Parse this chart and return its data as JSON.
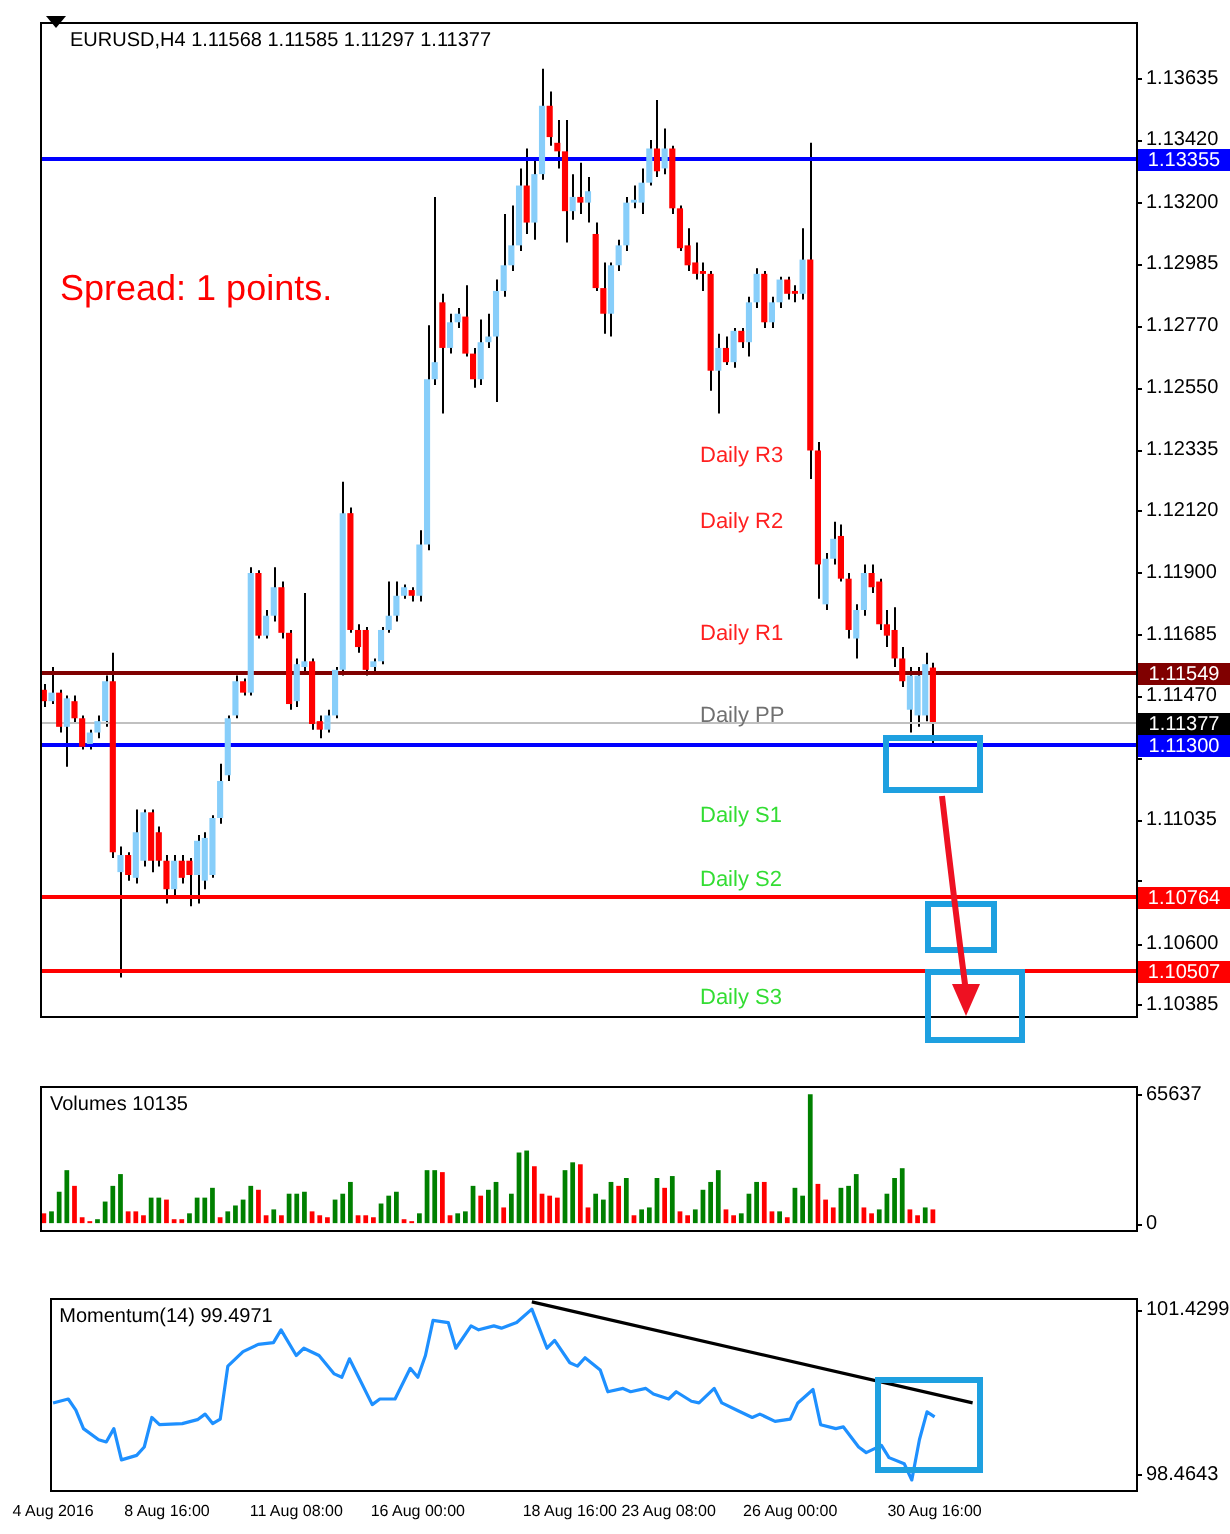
{
  "chart_data": [
    {
      "type": "candlestick",
      "title": "EURUSD,H4 1.11568 1.11585 1.11297 1.11377",
      "categories": [
        null,
        null,
        null,
        null,
        null,
        null,
        null,
        null,
        null,
        null,
        null,
        null,
        null,
        null,
        null,
        null,
        null,
        null,
        null,
        null,
        null,
        null,
        null,
        null,
        null,
        null,
        null,
        null,
        null,
        null,
        null,
        null,
        null,
        null,
        null,
        null,
        null,
        null,
        null,
        null,
        null,
        null,
        null,
        null,
        null,
        null,
        null,
        null,
        null,
        null,
        null,
        null,
        null,
        null,
        null,
        null,
        null,
        null,
        null,
        null,
        null,
        null,
        null,
        null,
        null,
        null,
        null,
        null,
        null,
        null,
        null,
        null,
        null,
        null,
        null,
        null,
        null,
        null,
        null,
        null,
        null,
        null,
        null,
        null,
        null,
        null,
        null,
        null,
        null,
        null,
        null,
        null,
        null,
        null,
        null,
        null,
        null,
        null,
        null,
        null,
        null,
        null,
        null,
        null,
        null,
        null,
        null,
        null,
        null,
        null,
        null,
        null,
        null,
        null,
        null,
        null,
        null,
        null,
        null,
        null,
        null,
        null,
        null,
        null,
        null,
        null,
        null,
        null,
        null,
        null,
        null,
        null,
        null,
        null,
        null,
        null,
        null,
        null,
        null,
        null,
        null,
        null,
        null
      ],
      "ohlc": [
        [
          1.1149,
          1.1151,
          1.1143,
          1.1145
        ],
        [
          1.1145,
          1.1157,
          1.1144,
          1.1148
        ],
        [
          1.1148,
          1.1149,
          1.1134,
          1.1136
        ],
        [
          1.1136,
          1.1147,
          1.1122,
          1.1146
        ],
        [
          1.1145,
          1.1147,
          1.1137,
          1.1139
        ],
        [
          1.1139,
          1.114,
          1.1128,
          1.1129
        ],
        [
          1.113,
          1.1135,
          1.1128,
          1.1134
        ],
        [
          1.1134,
          1.114,
          1.1132,
          1.1138
        ],
        [
          1.1138,
          1.1154,
          1.1136,
          1.1152
        ],
        [
          1.1152,
          1.1162,
          1.109,
          1.1092
        ],
        [
          1.1085,
          1.1094,
          1.1048,
          1.1091
        ],
        [
          1.1091,
          1.1092,
          1.1082,
          1.1084
        ],
        [
          1.1083,
          1.1107,
          1.1081,
          1.1099
        ],
        [
          1.1089,
          1.1107,
          1.1087,
          1.1106
        ],
        [
          1.1106,
          1.1107,
          1.1085,
          1.1089
        ],
        [
          1.1099,
          1.1101,
          1.1087,
          1.1089
        ],
        [
          1.1089,
          1.1091,
          1.1074,
          1.1079
        ],
        [
          1.1079,
          1.1091,
          1.1077,
          1.1089
        ],
        [
          1.1089,
          1.1091,
          1.1081,
          1.1083
        ],
        [
          1.1089,
          1.109,
          1.1073,
          1.1084
        ],
        [
          1.1084,
          1.1098,
          1.1074,
          1.1096
        ],
        [
          1.1082,
          1.1099,
          1.1079,
          1.1097
        ],
        [
          1.1084,
          1.1105,
          1.1083,
          1.1104
        ],
        [
          1.1104,
          1.1123,
          1.1102,
          1.1117
        ],
        [
          1.1119,
          1.114,
          1.1117,
          1.1139
        ],
        [
          1.114,
          1.1154,
          1.1139,
          1.1152
        ],
        [
          1.1152,
          1.1153,
          1.1147,
          1.1148
        ],
        [
          1.1148,
          1.1192,
          1.1147,
          1.119
        ],
        [
          1.119,
          1.1191,
          1.1167,
          1.1168
        ],
        [
          1.1168,
          1.1177,
          1.1167,
          1.1175
        ],
        [
          1.1175,
          1.1192,
          1.1173,
          1.1185
        ],
        [
          1.1185,
          1.1187,
          1.1167,
          1.1169
        ],
        [
          1.1169,
          1.117,
          1.1142,
          1.1144
        ],
        [
          1.1145,
          1.116,
          1.1143,
          1.1158
        ],
        [
          1.1157,
          1.1183,
          1.1155,
          1.1159
        ],
        [
          1.1159,
          1.116,
          1.1135,
          1.1137
        ],
        [
          1.1138,
          1.114,
          1.1132,
          1.1135
        ],
        [
          1.1135,
          1.1142,
          1.1134,
          1.114
        ],
        [
          1.114,
          1.1157,
          1.1139,
          1.1156
        ],
        [
          1.1156,
          1.1222,
          1.1154,
          1.1211
        ],
        [
          1.1211,
          1.1213,
          1.1169,
          1.117
        ],
        [
          1.117,
          1.1172,
          1.1162,
          1.1164
        ],
        [
          1.117,
          1.1171,
          1.1154,
          1.1156
        ],
        [
          1.1157,
          1.116,
          1.1155,
          1.1159
        ],
        [
          1.1159,
          1.1171,
          1.1158,
          1.117
        ],
        [
          1.117,
          1.1187,
          1.1169,
          1.1175
        ],
        [
          1.1175,
          1.1187,
          1.1173,
          1.1182
        ],
        [
          1.1182,
          1.1186,
          1.1181,
          1.1185
        ],
        [
          1.1184,
          1.1185,
          1.118,
          1.1182
        ],
        [
          1.1182,
          1.1205,
          1.118,
          1.12
        ],
        [
          1.12,
          1.1277,
          1.1198,
          1.1258
        ],
        [
          1.1258,
          1.1322,
          1.1256,
          1.1264
        ],
        [
          1.1285,
          1.1288,
          1.1246,
          1.1269
        ],
        [
          1.1269,
          1.1281,
          1.1267,
          1.1278
        ],
        [
          1.1278,
          1.1283,
          1.1276,
          1.1281
        ],
        [
          1.128,
          1.1291,
          1.1266,
          1.1267
        ],
        [
          1.1267,
          1.1269,
          1.1255,
          1.1258
        ],
        [
          1.1258,
          1.1279,
          1.1256,
          1.1271
        ],
        [
          1.1271,
          1.1281,
          1.1269,
          1.1273
        ],
        [
          1.1273,
          1.1293,
          1.125,
          1.1289
        ],
        [
          1.1289,
          1.1316,
          1.1287,
          1.1298
        ],
        [
          1.1298,
          1.1319,
          1.1296,
          1.1305
        ],
        [
          1.1305,
          1.1332,
          1.1303,
          1.1326
        ],
        [
          1.1326,
          1.1339,
          1.1309,
          1.1313
        ],
        [
          1.1313,
          1.1336,
          1.1307,
          1.133
        ],
        [
          1.133,
          1.1367,
          1.1328,
          1.1354
        ],
        [
          1.1354,
          1.1359,
          1.134,
          1.1343
        ],
        [
          1.1341,
          1.1349,
          1.1332,
          1.1338
        ],
        [
          1.1338,
          1.1349,
          1.1306,
          1.1317
        ],
        [
          1.1317,
          1.133,
          1.1314,
          1.1322
        ],
        [
          1.1322,
          1.1334,
          1.1316,
          1.132
        ],
        [
          1.132,
          1.1329,
          1.1313,
          1.1324
        ],
        [
          1.1309,
          1.1313,
          1.1289,
          1.129
        ],
        [
          1.129,
          1.1299,
          1.1274,
          1.1281
        ],
        [
          1.1281,
          1.1299,
          1.1273,
          1.1298
        ],
        [
          1.1298,
          1.1307,
          1.1296,
          1.1305
        ],
        [
          1.1305,
          1.1322,
          1.1303,
          1.132
        ],
        [
          1.132,
          1.1326,
          1.1318,
          1.1321
        ],
        [
          1.132,
          1.1332,
          1.1316,
          1.1327
        ],
        [
          1.1327,
          1.1342,
          1.1326,
          1.1339
        ],
        [
          1.1339,
          1.1356,
          1.1329,
          1.1331
        ],
        [
          1.1332,
          1.1346,
          1.133,
          1.1339
        ],
        [
          1.1339,
          1.134,
          1.1316,
          1.1318
        ],
        [
          1.1318,
          1.1319,
          1.1303,
          1.1304
        ],
        [
          1.1305,
          1.1311,
          1.1296,
          1.1298
        ],
        [
          1.1299,
          1.1306,
          1.1293,
          1.1295
        ],
        [
          1.1296,
          1.1299,
          1.1289,
          1.1295
        ],
        [
          1.1295,
          1.1296,
          1.1254,
          1.1261
        ],
        [
          1.1261,
          1.1274,
          1.1246,
          1.1269
        ],
        [
          1.1269,
          1.1273,
          1.1263,
          1.1264
        ],
        [
          1.1264,
          1.1276,
          1.1262,
          1.1275
        ],
        [
          1.1275,
          1.1276,
          1.1269,
          1.1271
        ],
        [
          1.1271,
          1.1287,
          1.1266,
          1.1285
        ],
        [
          1.1285,
          1.1297,
          1.1283,
          1.1295
        ],
        [
          1.1295,
          1.1296,
          1.1276,
          1.1278
        ],
        [
          1.1278,
          1.1287,
          1.1276,
          1.1285
        ],
        [
          1.1285,
          1.1294,
          1.1283,
          1.1293
        ],
        [
          1.1293,
          1.1294,
          1.1286,
          1.1288
        ],
        [
          1.1289,
          1.1291,
          1.1285,
          1.1288
        ],
        [
          1.1288,
          1.1311,
          1.1286,
          1.13
        ],
        [
          1.13,
          1.1341,
          1.1223,
          1.1233
        ],
        [
          1.1233,
          1.1236,
          1.1181,
          1.1193
        ],
        [
          1.1179,
          1.1197,
          1.1177,
          1.1195
        ],
        [
          1.1195,
          1.1208,
          1.1193,
          1.1202
        ],
        [
          1.1203,
          1.1207,
          1.1187,
          1.1188
        ],
        [
          1.1188,
          1.119,
          1.1167,
          1.117
        ],
        [
          1.1167,
          1.1179,
          1.116,
          1.1177
        ],
        [
          1.1177,
          1.1193,
          1.1175,
          1.119
        ],
        [
          1.119,
          1.1193,
          1.1183,
          1.1185
        ],
        [
          1.1187,
          1.1188,
          1.117,
          1.1172
        ],
        [
          1.1172,
          1.1177,
          1.1164,
          1.1168
        ],
        [
          1.117,
          1.1178,
          1.1157,
          1.116
        ],
        [
          1.116,
          1.1164,
          1.115,
          1.1152
        ],
        [
          1.1142,
          1.1157,
          1.1134,
          1.1154
        ],
        [
          1.114,
          1.1157,
          1.1136,
          1.1154
        ],
        [
          1.114,
          1.1162,
          1.1138,
          1.1158
        ],
        [
          1.11568,
          1.11585,
          1.11297,
          1.11377
        ],
        null,
        null,
        null,
        null,
        null,
        null,
        null,
        null,
        null,
        null,
        null,
        null,
        null,
        null,
        null,
        null,
        null,
        null,
        null,
        null,
        null,
        null,
        null,
        null,
        null,
        null
      ],
      "ylim": [
        1.10345,
        1.13834
      ],
      "yticks": [
        1.13635,
        {
          "value": 1.1342,
          "label": "1.13420"
        },
        {
          "value": 1.132,
          "label": "1.13200"
        },
        1.12985,
        {
          "value": 1.1277,
          "label": "1.12770"
        },
        {
          "value": 1.1255,
          "label": "1.12550"
        },
        1.12335,
        {
          "value": 1.1212,
          "label": "1.12120"
        },
        {
          "value": 1.119,
          "label": "1.11900"
        },
        1.11685,
        {
          "value": 1.1147,
          "label": "1.11470"
        },
        {
          "value": 1.1125,
          "label": null
        },
        1.11035,
        {
          "value": 1.1082,
          "label": null
        },
        {
          "value": 1.106,
          "label": "1.10600"
        },
        1.10385
      ],
      "tick_labels": "y",
      "ref_lines": [
        {
          "axis": "y",
          "value": 1.13355,
          "label": "1.13355",
          "color": "#0000ff"
        },
        {
          "axis": "y",
          "value": 1.11549,
          "label": "1.11549",
          "color": "#800000"
        },
        {
          "axis": "y",
          "value": 1.11377,
          "label": "1.11377",
          "color": "#c0c0c0"
        },
        {
          "axis": "y",
          "value": 1.113,
          "label": "1.11300",
          "color": "#0000ff"
        },
        {
          "axis": "y",
          "value": 1.10764,
          "label": "1.10764",
          "color": "#ff0000"
        },
        {
          "axis": "y",
          "value": 1.10507,
          "label": "1.10507",
          "color": "#ff0000"
        }
      ],
      "annotations": [
        "Spread: 1 points.",
        "Daily R3",
        "Daily R2",
        "Daily R1",
        "Daily PP",
        "Daily S1",
        "Daily S2",
        "Daily S3"
      ]
    },
    {
      "type": "bar",
      "title": "Volumes 10135",
      "categories": [
        null,
        null,
        null,
        null,
        null,
        null,
        null,
        null,
        null,
        null,
        null,
        null,
        null,
        null,
        null,
        null,
        null,
        null,
        null,
        null,
        null,
        null,
        null,
        null,
        null,
        null,
        null,
        null,
        null,
        null,
        null,
        null,
        null,
        null,
        null,
        null,
        null,
        null,
        null,
        null,
        null,
        null,
        null,
        null,
        null,
        null,
        null,
        null,
        null,
        null,
        null,
        null,
        null,
        null,
        null,
        null,
        null,
        null,
        null,
        null,
        null,
        null,
        null,
        null,
        null,
        null,
        null,
        null,
        null,
        null,
        null,
        null,
        null,
        null,
        null,
        null,
        null,
        null,
        null,
        null,
        null,
        null,
        null,
        null,
        null,
        null,
        null,
        null,
        null,
        null,
        null,
        null,
        null,
        null,
        null,
        null,
        null,
        null,
        null,
        null,
        null,
        null,
        null,
        null,
        null,
        null,
        null,
        null,
        null,
        null,
        null,
        null,
        null,
        null,
        null,
        null,
        null,
        null,
        null,
        null,
        null,
        null,
        null,
        null,
        null,
        null,
        null,
        null,
        null,
        null,
        null,
        null,
        null,
        null,
        null,
        null,
        null,
        null,
        null,
        null,
        null,
        null,
        null
      ],
      "values": [
        5000,
        6000,
        16000,
        27000,
        19000,
        3000,
        1000,
        2000,
        11000,
        19000,
        25000,
        6000,
        6000,
        4000,
        13000,
        13000,
        12000,
        2000,
        2000,
        5000,
        13000,
        13000,
        18000,
        3000,
        6000,
        9000,
        12000,
        19000,
        17000,
        4000,
        7000,
        4000,
        15000,
        15000,
        16000,
        6000,
        4000,
        3000,
        12000,
        15000,
        21000,
        4000,
        4000,
        3000,
        10000,
        14000,
        16000,
        2000,
        1000,
        5000,
        27000,
        27000,
        26000,
        4000,
        5000,
        6000,
        19000,
        14000,
        17000,
        21000,
        8000,
        15000,
        36000,
        37000,
        29000,
        15000,
        14000,
        13000,
        27000,
        31000,
        30000,
        8000,
        15000,
        12000,
        21000,
        19000,
        23000,
        4000,
        7000,
        8000,
        23000,
        18000,
        24000,
        6000,
        4000,
        7000,
        17000,
        21000,
        27000,
        7000,
        4000,
        5000,
        15000,
        21000,
        21000,
        6000,
        6000,
        3000,
        18000,
        14000,
        65637,
        20000,
        12000,
        8000,
        18000,
        19000,
        25000,
        8000,
        5000,
        7000,
        15000,
        23000,
        28000,
        7000,
        4000,
        8000,
        7000,
        null,
        null,
        null,
        null,
        null,
        null,
        null,
        null,
        null,
        null,
        null,
        null,
        null,
        null,
        null,
        null,
        null,
        null,
        null,
        null,
        null,
        null,
        null,
        null,
        null,
        null
      ],
      "colors": [
        "#ff0000",
        "#008000",
        "#008000",
        "#008000",
        "#ff0000",
        "#ff0000",
        "#ff0000",
        "#008000",
        "#008000",
        "#008000",
        "#008000",
        "#ff0000",
        "#ff0000",
        "#ff0000",
        "#008000",
        "#008000",
        "#ff0000",
        "#ff0000",
        "#ff0000",
        "#008000",
        "#008000",
        "#008000",
        "#008000",
        "#ff0000",
        "#008000",
        "#008000",
        "#008000",
        "#008000",
        "#ff0000",
        "#ff0000",
        "#008000",
        "#ff0000",
        "#008000",
        "#008000",
        "#008000",
        "#ff0000",
        "#ff0000",
        "#ff0000",
        "#008000",
        "#008000",
        "#008000",
        "#ff0000",
        "#ff0000",
        "#ff0000",
        "#008000",
        "#008000",
        "#008000",
        "#ff0000",
        "#ff0000",
        "#008000",
        "#008000",
        "#008000",
        "#ff0000",
        "#ff0000",
        "#008000",
        "#008000",
        "#008000",
        "#ff0000",
        "#008000",
        "#008000",
        "#ff0000",
        "#008000",
        "#008000",
        "#008000",
        "#ff0000",
        "#ff0000",
        "#ff0000",
        "#ff0000",
        "#008000",
        "#008000",
        "#ff0000",
        "#ff0000",
        "#008000",
        "#008000",
        "#008000",
        "#ff0000",
        "#008000",
        "#ff0000",
        "#008000",
        "#008000",
        "#008000",
        "#ff0000",
        "#008000",
        "#ff0000",
        "#ff0000",
        "#008000",
        "#008000",
        "#008000",
        "#008000",
        "#ff0000",
        "#ff0000",
        "#008000",
        "#008000",
        "#008000",
        "#ff0000",
        "#ff0000",
        "#008000",
        "#ff0000",
        "#008000",
        "#008000",
        "#008000",
        "#ff0000",
        "#ff0000",
        "#ff0000",
        "#008000",
        "#008000",
        "#008000",
        "#ff0000",
        "#ff0000",
        "#008000",
        "#008000",
        "#008000",
        "#008000",
        "#ff0000",
        "#ff0000",
        "#008000",
        "#ff0000",
        null,
        null,
        null,
        null,
        null,
        null,
        null,
        null,
        null,
        null,
        null,
        null,
        null,
        null,
        null,
        null,
        null,
        null,
        null,
        null,
        null,
        null,
        null,
        null,
        null,
        null
      ],
      "ylim": [
        -3500,
        69900
      ],
      "yticks": [
        65637,
        0
      ],
      "tick_labels": "y"
    },
    {
      "type": "line",
      "title": "Momentum(14) 99.4971",
      "categories": [
        "4 Aug 2016",
        null,
        null,
        null,
        null,
        null,
        null,
        null,
        null,
        null,
        null,
        null,
        null,
        null,
        null,
        "8 Aug 16:00",
        null,
        null,
        null,
        null,
        null,
        null,
        null,
        null,
        null,
        null,
        null,
        null,
        null,
        null,
        null,
        null,
        "11 Aug 08:00",
        null,
        null,
        null,
        null,
        null,
        null,
        null,
        null,
        null,
        null,
        null,
        null,
        null,
        null,
        null,
        "16 Aug 00:00",
        null,
        null,
        null,
        null,
        null,
        null,
        null,
        null,
        null,
        null,
        null,
        null,
        null,
        null,
        null,
        null,
        null,
        null,
        null,
        "18 Aug 16:00",
        null,
        null,
        null,
        null,
        null,
        null,
        null,
        null,
        null,
        null,
        null,
        null,
        "23 Aug 08:00",
        null,
        null,
        null,
        null,
        null,
        null,
        null,
        null,
        null,
        null,
        null,
        null,
        null,
        null,
        null,
        "26 Aug 00:00",
        null,
        null,
        null,
        null,
        null,
        null,
        null,
        null,
        null,
        null,
        null,
        null,
        null,
        null,
        null,
        null,
        null,
        null,
        "30 Aug 16:00",
        null,
        null,
        null,
        null,
        null,
        null,
        null,
        null,
        null,
        null,
        null,
        null,
        null,
        null,
        null,
        null,
        null,
        null,
        null,
        null,
        null,
        null,
        null,
        null,
        null,
        null
      ],
      "series": [
        {
          "color": "#1e90ff",
          "values": [
            99.75,
            null,
            99.82,
            99.62,
            99.29,
            null,
            99.09,
            99.05,
            99.29,
            98.73,
            null,
            98.81,
            98.96,
            99.49,
            99.36,
            null,
            null,
            99.38,
            null,
            99.45,
            99.55,
            99.38,
            99.46,
            100.41,
            null,
            100.67,
            null,
            100.8,
            null,
            100.83,
            101.06,
            null,
            100.6,
            100.73,
            null,
            100.6,
            null,
            100.27,
            100.21,
            100.54,
            100.27,
            null,
            99.72,
            99.82,
            null,
            99.82,
            null,
            100.37,
            100.21,
            100.6,
            101.23,
            null,
            101.19,
            100.73,
            null,
            101.13,
            101.06,
            null,
            101.13,
            101.09,
            null,
            101.19,
            null,
            101.43,
            null,
            100.73,
            100.87,
            null,
            100.47,
            100.41,
            100.56,
            null,
            100.34,
            99.95,
            null,
            100.01,
            99.95,
            null,
            100.01,
            99.91,
            null,
            99.82,
            99.95,
            null,
            99.78,
            99.75,
            null,
            100.01,
            99.75,
            null,
            99.62,
            null,
            99.49,
            99.55,
            null,
            99.42,
            null,
            99.46,
            99.75,
            null,
            99.99,
            99.36,
            null,
            99.29,
            99.32,
            null,
            98.96,
            98.86,
            null,
            98.99,
            98.77,
            null,
            98.66,
            98.37,
            99.09,
            99.59,
            99.5,
            null,
            null,
            null,
            null,
            null,
            null,
            null,
            null,
            null,
            null,
            null,
            null,
            null,
            null,
            null,
            null,
            null,
            null,
            null,
            null,
            null,
            null,
            null,
            null,
            null,
            null
          ]
        },
        {
          "type": "line",
          "color": "#000000",
          "values": [
            null,
            null,
            null,
            null,
            null,
            null,
            null,
            null,
            null,
            null,
            null,
            null,
            null,
            null,
            null,
            null,
            null,
            null,
            null,
            null,
            null,
            null,
            null,
            null,
            null,
            null,
            null,
            null,
            null,
            null,
            null,
            null,
            null,
            null,
            null,
            null,
            null,
            null,
            null,
            null,
            null,
            null,
            null,
            null,
            null,
            null,
            null,
            null,
            null,
            null,
            null,
            null,
            null,
            null,
            null,
            null,
            null,
            null,
            null,
            null,
            null,
            null,
            null,
            101.56,
            null,
            null,
            null,
            null,
            null,
            null,
            null,
            null,
            null,
            null,
            null,
            null,
            null,
            null,
            null,
            null,
            null,
            null,
            null,
            null,
            null,
            null,
            null,
            null,
            null,
            null,
            null,
            null,
            null,
            null,
            null,
            null,
            null,
            null,
            null,
            null,
            null,
            null,
            null,
            null,
            null,
            null,
            null,
            null,
            null,
            null,
            null,
            null,
            null,
            null,
            null,
            null,
            null,
            null,
            null,
            null,
            null,
            99.75,
            null,
            null,
            null,
            null,
            null,
            null,
            null,
            null,
            null,
            null,
            null,
            null,
            null,
            null,
            null,
            null,
            null,
            null,
            null,
            null,
            null
          ]
        }
      ],
      "ylim": [
        98.19,
        101.63
      ],
      "yticks": [
        101.4299,
        98.4643
      ]
    }
  ]
}
